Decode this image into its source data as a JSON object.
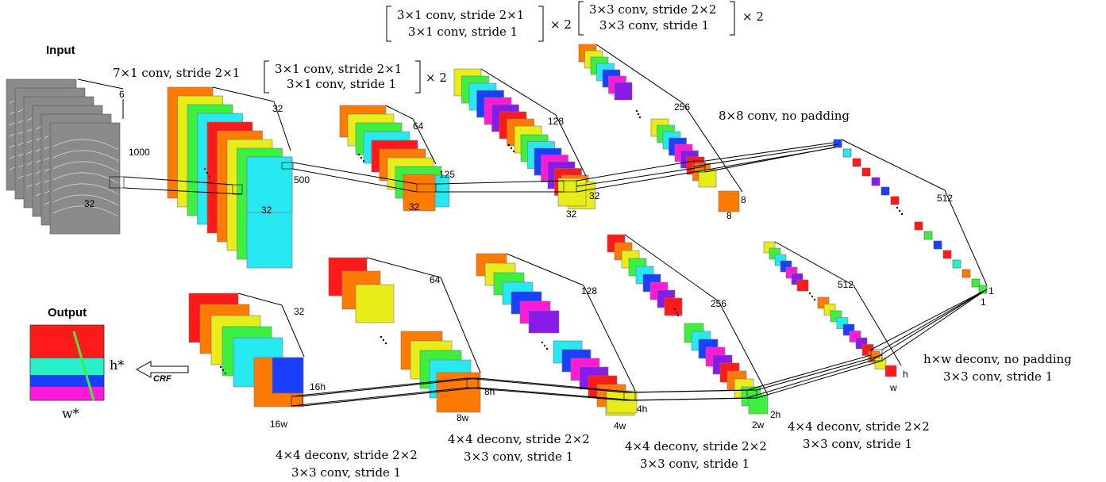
{
  "labels": {
    "input_title": "Input",
    "output_title": "Output",
    "crf": "CRF",
    "h_star": "h*",
    "w_star": "w*",
    "enc": {
      "in_ch": "6",
      "in_h": "1000",
      "in_w": "32",
      "conv1": "7×1 conv, stride 2×1",
      "c1_ch": "32",
      "c1_h": "500",
      "c1_w": "32",
      "block2_a": "3×1 conv, stride 2×1",
      "block2_b": "3×1 conv, stride 1",
      "times2_a": "× 2",
      "c2_ch": "64",
      "c2_h": "125",
      "c2_w": "32",
      "block3_a": "3×1 conv, stride 2×1",
      "block3_b": "3×1 conv, stride 1",
      "times2_b": "× 2",
      "c3_ch": "128",
      "c3_h": "32",
      "c3_w": "32",
      "block4_a": "3×3 conv, stride 2×2",
      "block4_b": "3×3 conv, stride 1",
      "times2_c": "× 2",
      "c4_ch": "256",
      "c4_h": "8",
      "c4_w": "8",
      "conv8": "8×8 conv, no padding",
      "c5_ch": "512",
      "c5_h": "1",
      "c5_w": "1"
    },
    "dec": {
      "d1_ch": "512",
      "d1_h": "h",
      "d1_w": "w",
      "deconv1_a": "h×w deconv, no padding",
      "deconv1_b": "3×3 conv, stride 1",
      "d2_ch": "256",
      "d2_h": "2h",
      "d2_w": "2w",
      "deconv2_a": "4×4 deconv, stride 2×2",
      "deconv2_b": "3×3 conv, stride 1",
      "d3_ch": "128",
      "d3_h": "4h",
      "d3_w": "4w",
      "deconv3_a": "4×4 deconv, stride 2×2",
      "deconv3_b": "3×3 conv, stride 1",
      "d4_ch": "64",
      "d4_h": "8h",
      "d4_w": "8w",
      "deconv4_a": "4×4 deconv, stride 2×2",
      "deconv4_b": "3×3 conv, stride 1",
      "d5_ch": "32",
      "d5_h": "16h",
      "d5_w": "16w",
      "deconv5_a": "4×4 deconv, stride 2×2",
      "deconv5_b": "3×3 conv, stride 1"
    }
  },
  "colors": {
    "red": "#ff1a1a",
    "orange": "#ff7a00",
    "yellow": "#e8ec19",
    "green": "#3ef03e",
    "cyan": "#26e8f0",
    "blue": "#1a40ff",
    "magenta": "#ff1ad8",
    "gray": "#8a8a8a",
    "seafoam": "#29f0c8",
    "purple": "#8a1ae8"
  },
  "output_band_colors": [
    "red",
    "seafoam",
    "blue",
    "magenta"
  ]
}
